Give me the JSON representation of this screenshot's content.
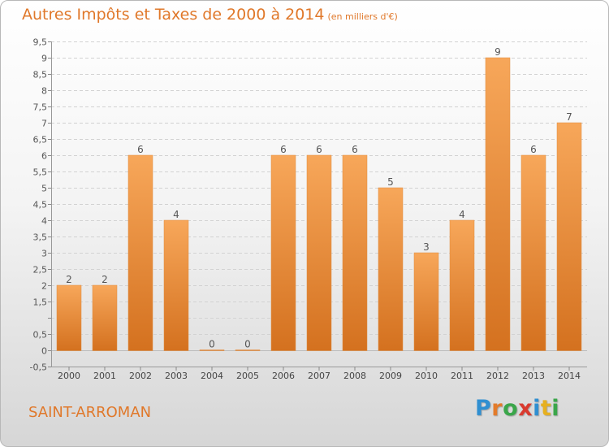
{
  "header": {
    "title": "Autres Impôts et Taxes de 2000 à 2014",
    "unit": "(en milliers d'€)"
  },
  "footer": {
    "place": "SAINT-ARROMAN",
    "logo": "Proxiti"
  },
  "colors": {
    "accent": "#e0782a",
    "bar_top": "#f7a75a",
    "bar_bottom": "#d4711f",
    "logo_letters": [
      "#2f8fd1",
      "#e37b2a",
      "#3aa64a",
      "#d93a2e",
      "#2f8fd1",
      "#e6b020",
      "#3aa64a"
    ]
  },
  "chart_data": {
    "type": "bar",
    "categories": [
      "2000",
      "2001",
      "2002",
      "2003",
      "2004",
      "2005",
      "2006",
      "2007",
      "2008",
      "2009",
      "2010",
      "2011",
      "2012",
      "2013",
      "2014"
    ],
    "values": [
      2,
      2,
      6,
      4,
      0,
      0,
      6,
      6,
      6,
      5,
      3,
      4,
      9,
      6,
      7
    ],
    "data_labels": [
      "2",
      "2",
      "6",
      "4",
      "0",
      "0",
      "6",
      "6",
      "6",
      "5",
      "3",
      "4",
      "9",
      "6",
      "7"
    ],
    "ylim": [
      -0.5,
      9.5
    ],
    "yticks": [
      -0.5,
      0,
      0.5,
      1,
      1.5,
      2,
      2.5,
      3,
      3.5,
      4,
      4.5,
      5,
      5.5,
      6,
      6.5,
      7,
      7.5,
      8,
      8.5,
      9,
      9.5
    ],
    "ytick_labels": [
      "-0,5",
      "0",
      "0,5",
      "",
      "1,5",
      "2",
      "2,5",
      "3",
      "3,5",
      "4",
      "4,5",
      "5",
      "5,5",
      "6",
      "6,5",
      "7",
      "7,5",
      "8",
      "8,5",
      "9",
      "9,5"
    ],
    "grid": true
  }
}
